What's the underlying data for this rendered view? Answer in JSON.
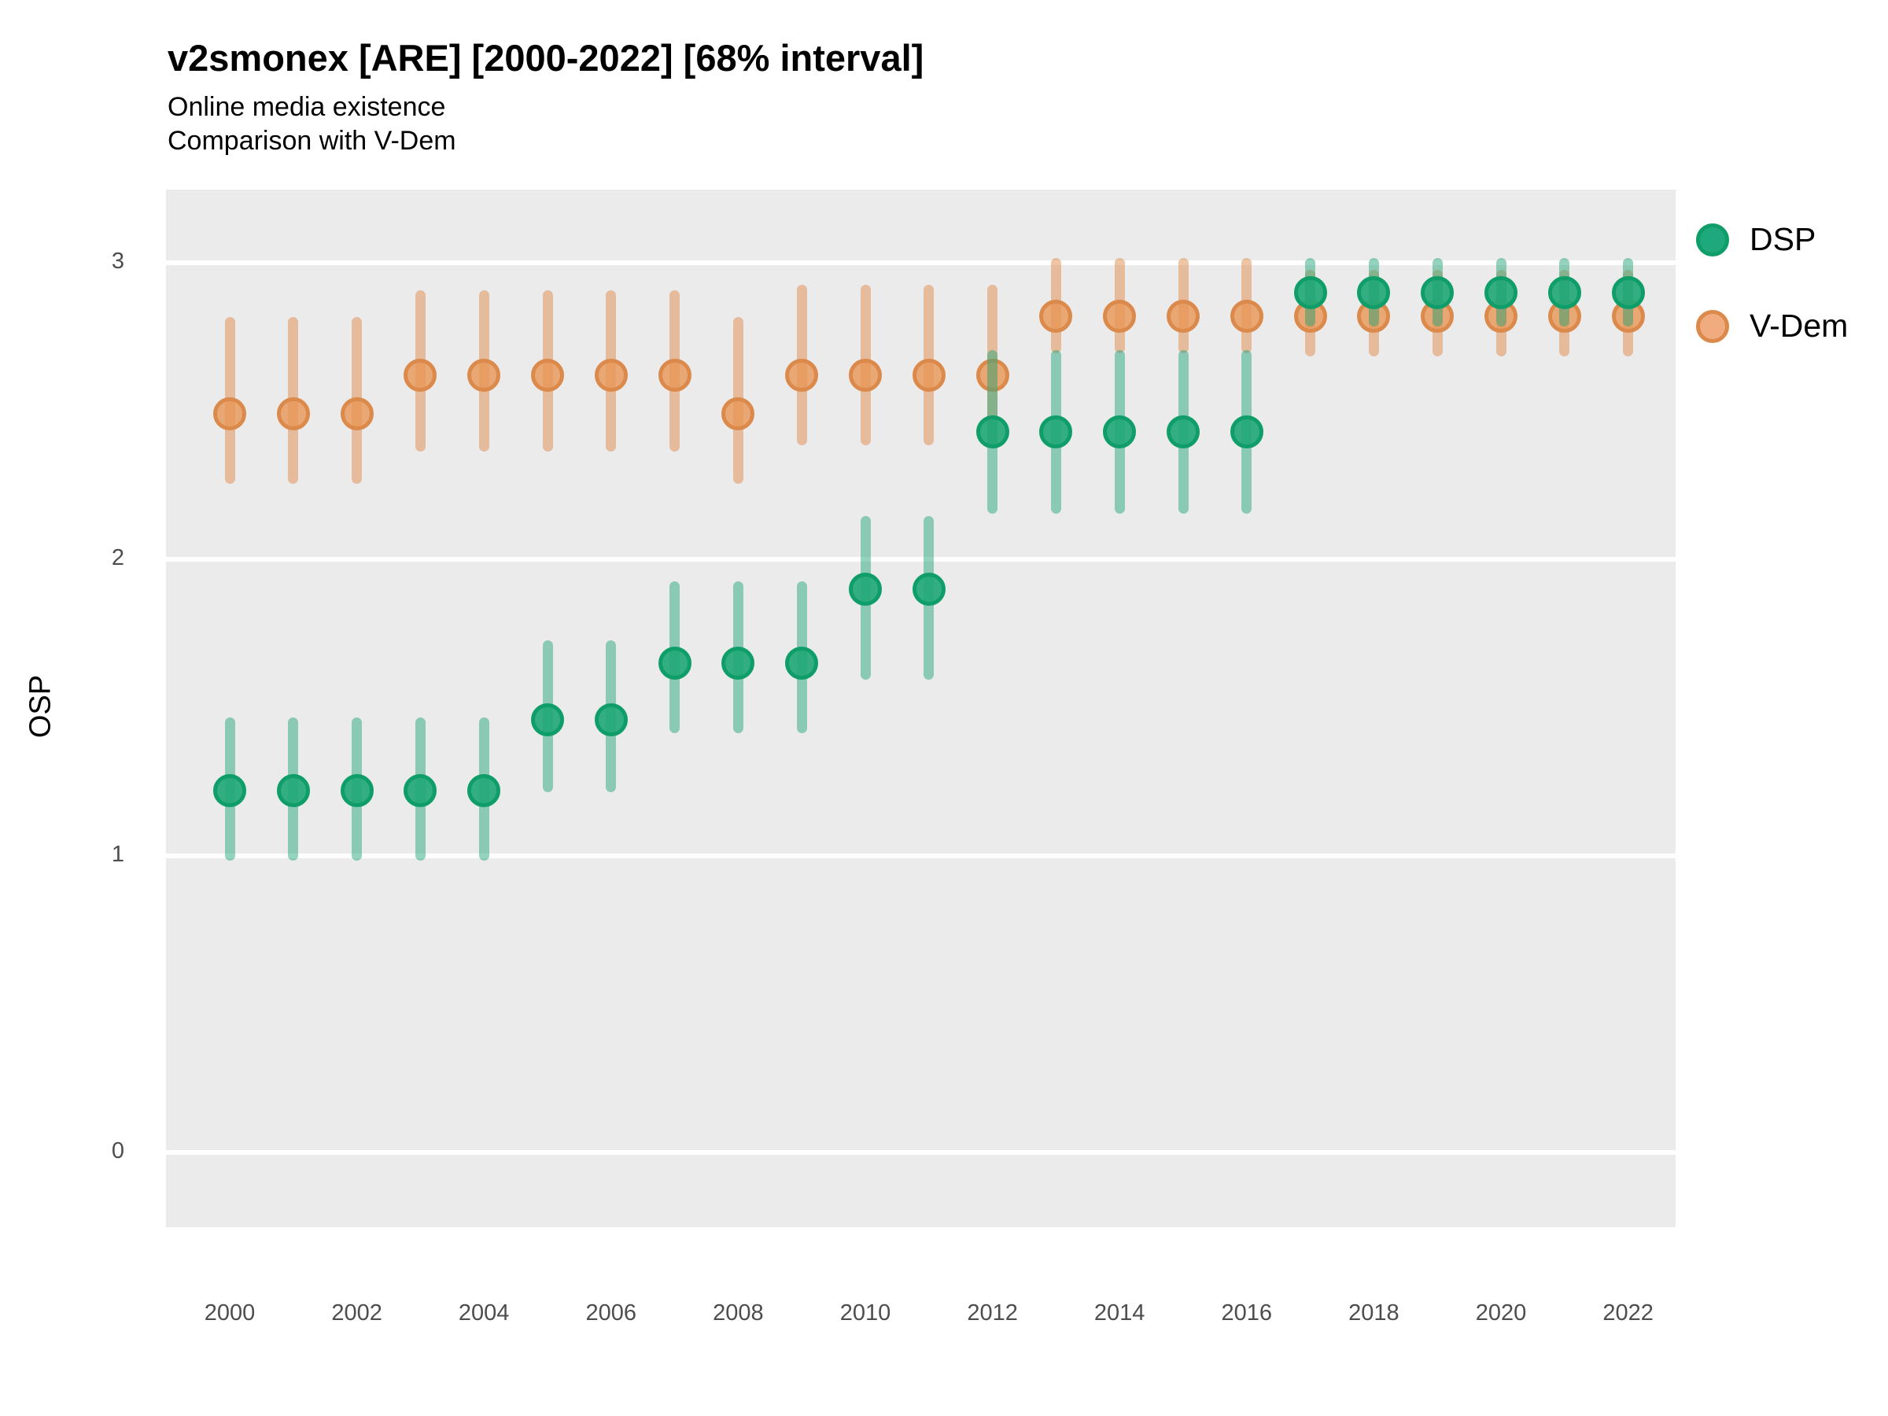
{
  "title": "v2smonex [ARE] [2000-2022] [68% interval]",
  "subtitle": "Online media existence",
  "subtitle2": "Comparison with V-Dem",
  "legend": {
    "items": [
      {
        "label": "DSP",
        "dot_fill": "#1fa87b",
        "dot_ring": "#0f9e6a"
      },
      {
        "label": "V-Dem",
        "dot_fill": "#f0ab7e",
        "dot_ring": "#db8a4b"
      }
    ]
  },
  "chart_data": {
    "type": "scatter",
    "subtype": "pointrange",
    "title": "v2smonex [ARE] [2000-2022] [68% interval]",
    "subtitle": "Online media existence",
    "subtitle2": "Comparison with V-Dem",
    "interval": "68%",
    "xlabel": "",
    "ylabel": "OSP",
    "xlim": [
      1999,
      2023
    ],
    "ylim": [
      -0.25,
      3.25
    ],
    "grid": "on",
    "legend_position": "right",
    "panel_background": "#ebebeb",
    "gridline_color": "#ffffff",
    "yticks": [
      0,
      1,
      2,
      3
    ],
    "ytick_labels": [
      "0",
      "1",
      "2",
      "3"
    ],
    "xticks": [
      2000,
      2002,
      2004,
      2006,
      2008,
      2010,
      2012,
      2014,
      2016,
      2018,
      2020,
      2022
    ],
    "xtick_labels": [
      "2000",
      "2002",
      "2004",
      "2006",
      "2008",
      "2010",
      "2012",
      "2014",
      "2016",
      "2018",
      "2020",
      "2022"
    ],
    "x": [
      2000,
      2001,
      2002,
      2003,
      2004,
      2005,
      2006,
      2007,
      2008,
      2009,
      2010,
      2011,
      2012,
      2013,
      2014,
      2015,
      2016,
      2017,
      2018,
      2019,
      2020,
      2021,
      2022
    ],
    "series": [
      {
        "name": "V-Dem",
        "draw_order": 1,
        "point_color": "rgba(233,150,85,0.8)",
        "ring_color": "#db8a4b",
        "bar_color": "rgba(224,140,75,0.5)",
        "values": [
          2.49,
          2.49,
          2.49,
          2.62,
          2.62,
          2.62,
          2.62,
          2.62,
          2.49,
          2.62,
          2.62,
          2.62,
          2.62,
          2.82,
          2.82,
          2.82,
          2.82,
          2.82,
          2.82,
          2.82,
          2.82,
          2.82,
          2.82
        ],
        "lower68": [
          2.27,
          2.27,
          2.27,
          2.38,
          2.38,
          2.38,
          2.38,
          2.38,
          2.27,
          2.4,
          2.4,
          2.4,
          2.4,
          2.71,
          2.71,
          2.71,
          2.71,
          2.7,
          2.7,
          2.7,
          2.7,
          2.7,
          2.7
        ],
        "upper68": [
          2.8,
          2.8,
          2.8,
          2.89,
          2.89,
          2.89,
          2.89,
          2.89,
          2.8,
          2.91,
          2.91,
          2.91,
          2.91,
          3.0,
          3.0,
          3.0,
          3.0,
          2.96,
          2.96,
          2.96,
          2.96,
          2.96,
          2.96
        ]
      },
      {
        "name": "DSP",
        "draw_order": 2,
        "point_color": "rgba(30,167,119,0.9)",
        "ring_color": "#0f9e6a",
        "bar_color": "rgba(42,168,124,0.5)",
        "values": [
          1.22,
          1.22,
          1.22,
          1.22,
          1.22,
          1.46,
          1.46,
          1.65,
          1.65,
          1.65,
          1.9,
          1.9,
          2.43,
          2.43,
          2.43,
          2.43,
          2.43,
          2.9,
          2.9,
          2.9,
          2.9,
          2.9,
          2.9
        ],
        "lower68": [
          1.0,
          1.0,
          1.0,
          1.0,
          1.0,
          1.23,
          1.23,
          1.43,
          1.43,
          1.43,
          1.61,
          1.61,
          2.17,
          2.17,
          2.17,
          2.17,
          2.17,
          2.8,
          2.8,
          2.8,
          2.8,
          2.8,
          2.8
        ],
        "upper68": [
          1.45,
          1.45,
          1.45,
          1.45,
          1.45,
          1.71,
          1.71,
          1.91,
          1.91,
          1.91,
          2.13,
          2.13,
          2.69,
          2.69,
          2.69,
          2.69,
          2.69,
          3.0,
          3.0,
          3.0,
          3.0,
          3.0,
          3.0
        ]
      }
    ]
  }
}
